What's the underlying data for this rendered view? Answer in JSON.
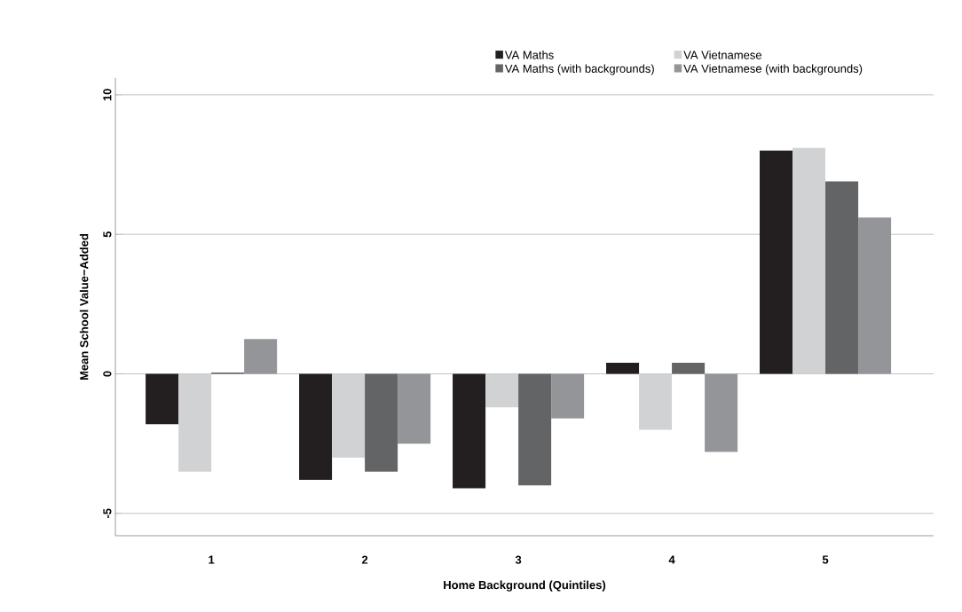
{
  "chart_data": {
    "type": "bar",
    "xlabel": "Home Background (Quintiles)",
    "ylabel": "Mean School Value−Added",
    "categories": [
      "1",
      "2",
      "3",
      "4",
      "5"
    ],
    "series": [
      {
        "name": "VA Maths",
        "color": "#231f20",
        "values": [
          -1.8,
          -3.8,
          -4.1,
          0.4,
          8.0
        ]
      },
      {
        "name": "VA Vietnamese",
        "color": "#d1d2d4",
        "values": [
          -3.5,
          -3.0,
          -1.2,
          -2.0,
          8.1
        ]
      },
      {
        "name": "VA Maths (with backgrounds)",
        "color": "#636466",
        "values": [
          0.05,
          -3.5,
          -4.0,
          0.4,
          6.9
        ]
      },
      {
        "name": "VA Vietnamese (with backgrounds)",
        "color": "#939598",
        "values": [
          1.25,
          -2.5,
          -1.6,
          -2.8,
          5.6
        ]
      }
    ],
    "ylim": [
      -5.8,
      10.6
    ],
    "yticks": [
      -5,
      0,
      5,
      10
    ],
    "grid": "y",
    "legend": "top"
  }
}
